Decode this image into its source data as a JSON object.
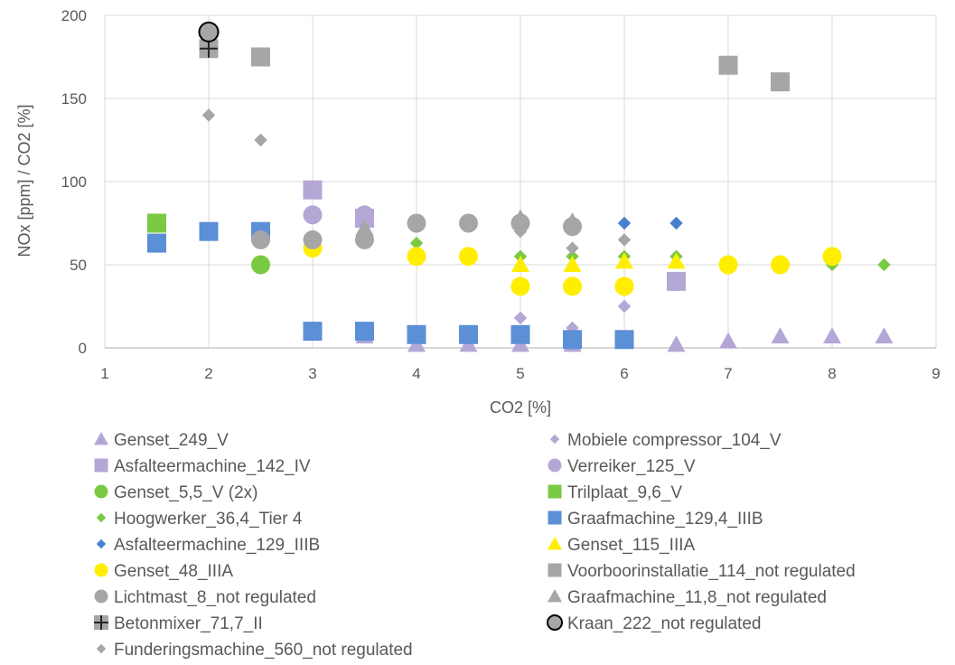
{
  "chart_data": {
    "type": "scatter",
    "title": "",
    "xlabel": "CO2 [%]",
    "ylabel": "NOx [ppm] / CO2 [%]",
    "xlim": [
      1,
      9
    ],
    "ylim": [
      0,
      200
    ],
    "x_ticks": [
      "1",
      "2",
      "3",
      "4",
      "5",
      "6",
      "7",
      "8",
      "9"
    ],
    "y_ticks": [
      "0",
      "50",
      "100",
      "150",
      "200"
    ],
    "grid": true,
    "legend_position": "bottom",
    "series": [
      {
        "name": "Genset_249_V",
        "marker": "triangle",
        "color": "#b4a7d6",
        "points": [
          [
            3.5,
            7
          ],
          [
            4,
            2
          ],
          [
            4.5,
            2
          ],
          [
            5,
            2
          ],
          [
            5.5,
            2
          ],
          [
            6.5,
            2
          ],
          [
            7,
            4
          ],
          [
            7.5,
            7
          ],
          [
            8,
            7
          ],
          [
            8.5,
            7
          ]
        ]
      },
      {
        "name": "Mobiele compressor_104_V",
        "marker": "diamond",
        "color": "#b4a7d6",
        "points": [
          [
            5,
            18
          ],
          [
            5.5,
            12
          ],
          [
            6,
            25
          ]
        ]
      },
      {
        "name": "Asfalteermachine_142_IV",
        "marker": "square",
        "color": "#b4a7d6",
        "points": [
          [
            3,
            95
          ],
          [
            3.5,
            78
          ],
          [
            6.5,
            40
          ]
        ]
      },
      {
        "name": "Verreiker_125_V",
        "marker": "circle",
        "color": "#b4a7d6",
        "points": [
          [
            3,
            80
          ],
          [
            3.5,
            80
          ]
        ]
      },
      {
        "name": "Genset_5,5_V (2x)",
        "marker": "circle",
        "color": "#7ac943",
        "points": [
          [
            2.5,
            50
          ]
        ]
      },
      {
        "name": "Trilplaat_9,6_V",
        "marker": "square",
        "color": "#7ac943",
        "points": [
          [
            1.5,
            75
          ]
        ]
      },
      {
        "name": "Hoogwerker_36,4_Tier 4",
        "marker": "diamond",
        "color": "#7ac943",
        "points": [
          [
            3.5,
            63
          ],
          [
            4,
            63
          ],
          [
            5,
            55
          ],
          [
            5.5,
            55
          ],
          [
            6,
            55
          ],
          [
            6.5,
            55
          ],
          [
            7,
            52
          ],
          [
            7.5,
            52
          ],
          [
            8,
            50
          ],
          [
            8.5,
            50
          ]
        ]
      },
      {
        "name": "Graafmachine_129,4_IIIB",
        "marker": "square",
        "color": "#5b8fd6",
        "points": [
          [
            1.5,
            63
          ],
          [
            2,
            70
          ],
          [
            2.5,
            70
          ],
          [
            3,
            10
          ],
          [
            3.5,
            10
          ],
          [
            4,
            8
          ],
          [
            4.5,
            8
          ],
          [
            5,
            8
          ],
          [
            5.5,
            5
          ],
          [
            6,
            5
          ]
        ]
      },
      {
        "name": "Asfalteermachine_129_IIIB",
        "marker": "diamond",
        "color": "#4a7fd0",
        "points": [
          [
            6,
            75
          ],
          [
            6.5,
            75
          ]
        ]
      },
      {
        "name": "Genset_115_IIIA",
        "marker": "triangle",
        "color": "#ffee00",
        "points": [
          [
            5,
            50
          ],
          [
            5.5,
            50
          ],
          [
            6,
            52
          ],
          [
            6.5,
            52
          ]
        ]
      },
      {
        "name": "Genset_48_IIIA",
        "marker": "circle",
        "color": "#ffee00",
        "points": [
          [
            3,
            60
          ],
          [
            4,
            55
          ],
          [
            4.5,
            55
          ],
          [
            5,
            37
          ],
          [
            5.5,
            37
          ],
          [
            6,
            37
          ],
          [
            7,
            50
          ],
          [
            7.5,
            50
          ],
          [
            8,
            55
          ]
        ]
      },
      {
        "name": "Voorboorinstallatie_114_not regulated",
        "marker": "square",
        "color": "#a6a6a6",
        "points": [
          [
            2,
            180
          ],
          [
            2.5,
            175
          ],
          [
            7,
            170
          ],
          [
            7.5,
            160
          ]
        ]
      },
      {
        "name": "Lichtmast_8_not regulated",
        "marker": "circle",
        "color": "#a6a6a6",
        "points": [
          [
            2.5,
            65
          ],
          [
            3,
            65
          ],
          [
            3.5,
            65
          ],
          [
            4,
            75
          ],
          [
            4.5,
            75
          ],
          [
            5,
            75
          ],
          [
            5.5,
            73
          ]
        ]
      },
      {
        "name": "Graafmachine_11,8_not regulated",
        "marker": "triangle",
        "color": "#a6a6a6",
        "points": [
          [
            3.5,
            72
          ],
          [
            5,
            78
          ],
          [
            5.5,
            76
          ]
        ]
      },
      {
        "name": "Betonmixer_71,7_II",
        "marker": "plus",
        "color": "#262626",
        "points": [
          [
            2,
            180
          ]
        ]
      },
      {
        "name": "Kraan_222_not regulated",
        "marker": "ringcircle",
        "color": "#a6a6a6",
        "points": [
          [
            2,
            190
          ]
        ]
      },
      {
        "name": "Funderingsmachine_560_not regulated",
        "marker": "diamond",
        "color": "#a6a6a6",
        "points": [
          [
            2,
            140
          ],
          [
            2.5,
            125
          ],
          [
            5,
            70
          ],
          [
            5.5,
            60
          ],
          [
            6,
            65
          ]
        ]
      }
    ]
  }
}
